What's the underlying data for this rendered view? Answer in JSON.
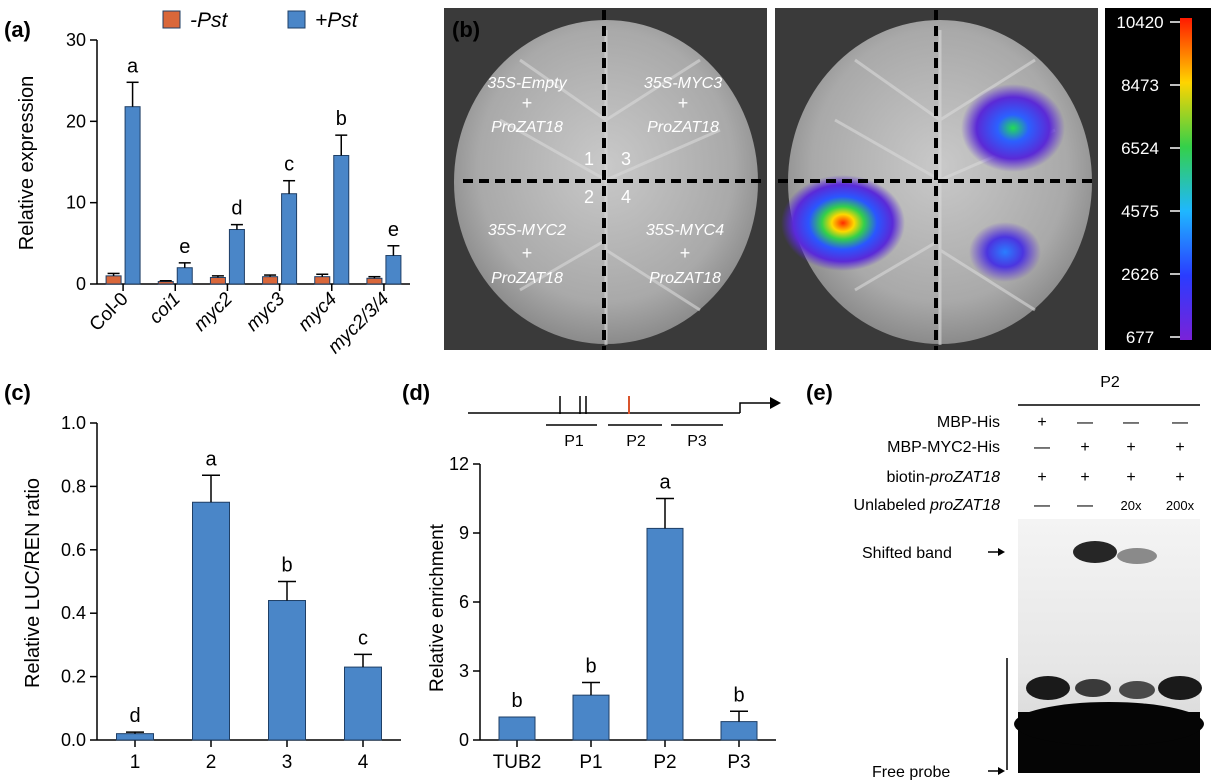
{
  "panel_labels": {
    "a": "(a)",
    "b": "(b)",
    "c": "(c)",
    "d": "(d)",
    "e": "(e)"
  },
  "colors": {
    "bar_blue": "#4a86c8",
    "bar_orange": "#d9673a",
    "edge": "#1f3f66"
  },
  "chart_data": [
    {
      "panel": "a",
      "type": "bar",
      "ylabel": "Relative expression",
      "xlabel": "",
      "ylim": [
        0,
        30
      ],
      "yticks": [
        0,
        10,
        20,
        30
      ],
      "categories": [
        "Col-0",
        "coi1",
        "myc2",
        "myc3",
        "myc4",
        "myc2/3/4"
      ],
      "series": [
        {
          "name": "-Pst",
          "color": "#d9673a",
          "values": [
            1.0,
            0.3,
            0.8,
            0.9,
            0.9,
            0.7
          ],
          "errors": [
            0.3,
            0.1,
            0.2,
            0.2,
            0.3,
            0.2
          ]
        },
        {
          "name": "+Pst",
          "color": "#4a86c8",
          "values": [
            21.8,
            2.0,
            6.7,
            11.1,
            15.8,
            3.5
          ],
          "errors": [
            3.0,
            0.6,
            0.6,
            1.6,
            2.5,
            1.2
          ]
        }
      ],
      "letters": [
        "a",
        "e",
        "d",
        "c",
        "b",
        "e"
      ]
    },
    {
      "panel": "c",
      "type": "bar",
      "ylabel": "Relative LUC/REN ratio",
      "xlabel": "",
      "ylim": [
        0,
        1.0
      ],
      "yticks": [
        "0.0",
        "0.2",
        "0.4",
        "0.6",
        "0.8",
        "1.0"
      ],
      "categories": [
        "1",
        "2",
        "3",
        "4"
      ],
      "values": [
        0.02,
        0.75,
        0.44,
        0.23
      ],
      "errors": [
        0.005,
        0.085,
        0.06,
        0.04
      ],
      "letters": [
        "d",
        "a",
        "b",
        "c"
      ]
    },
    {
      "panel": "d",
      "type": "bar",
      "ylabel": "Relative enrichment",
      "xlabel": "",
      "ylim": [
        0,
        12
      ],
      "yticks": [
        0,
        3,
        6,
        9,
        12
      ],
      "categories": [
        "TUB2",
        "P1",
        "P2",
        "P3"
      ],
      "values": [
        1.0,
        1.95,
        9.2,
        0.8
      ],
      "errors": [
        0,
        0.55,
        1.3,
        0.45
      ],
      "letters": [
        "b",
        "b",
        "a",
        "b"
      ]
    }
  ],
  "panel_b": {
    "constructs": [
      {
        "name": "35S-Empty",
        "partner": "ProZAT18",
        "plus": "+"
      },
      {
        "name": "35S-MYC3",
        "partner": "ProZAT18",
        "plus": "+"
      },
      {
        "name": "35S-MYC2",
        "partner": "ProZAT18",
        "plus": "+"
      },
      {
        "name": "35S-MYC4",
        "partner": "ProZAT18",
        "plus": "+"
      }
    ],
    "quadrant_numbers": [
      "1",
      "3",
      "2",
      "4"
    ],
    "scale_values": [
      "10420",
      "8473",
      "6524",
      "4575",
      "2626",
      "677"
    ]
  },
  "panel_d_gene": {
    "regions": [
      "P1",
      "P2",
      "P3"
    ]
  },
  "panel_e": {
    "probe": "P2",
    "rows": [
      {
        "label": "MBP-His",
        "label_italic": "",
        "cells": [
          "+",
          "—",
          "—",
          "—"
        ]
      },
      {
        "label": "MBP-MYC2-His",
        "label_italic": "",
        "cells": [
          "—",
          "+",
          "+",
          "+"
        ]
      },
      {
        "label": "biotin-",
        "label_italic": "proZAT18",
        "cells": [
          "+",
          "+",
          "+",
          "+"
        ]
      },
      {
        "label": "Unlabeled ",
        "label_italic": "proZAT18",
        "cells": [
          "—",
          "—",
          "20x",
          "200x"
        ]
      }
    ],
    "shifted_band": "Shifted band",
    "free_probe": "Free probe"
  }
}
